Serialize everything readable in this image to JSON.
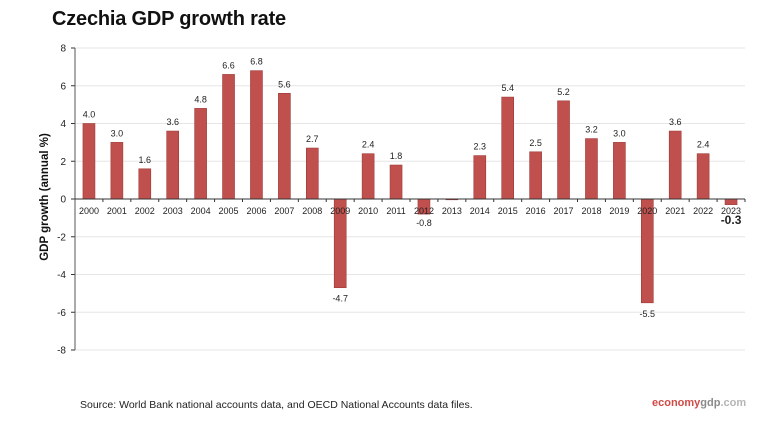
{
  "header": {
    "title": "Czechia GDP growth rate"
  },
  "footer": {
    "source": "Source: World Bank national accounts data, and OECD National Accounts data files.",
    "brand_part1": "economy",
    "brand_part2": "gdp",
    "brand_part3": ".com"
  },
  "colors": {
    "bar": "#c0504d",
    "bar_edge": "#9e3a37",
    "grid": "#e6e6e6"
  },
  "chart_data": {
    "type": "bar",
    "title": "Czechia GDP growth rate",
    "xlabel": "",
    "ylabel": "GDP growth (annual %)",
    "ylim": [
      -8,
      8
    ],
    "yticks": [
      8,
      6,
      4,
      2,
      0,
      -2,
      -4,
      -6,
      -8
    ],
    "grid": true,
    "categories": [
      "2000",
      "2001",
      "2002",
      "2003",
      "2004",
      "2005",
      "2006",
      "2007",
      "2008",
      "2009",
      "2010",
      "2011",
      "2012",
      "2013",
      "2014",
      "2015",
      "2016",
      "2017",
      "2018",
      "2019",
      "2020",
      "2021",
      "2022",
      "2023"
    ],
    "values": [
      4.0,
      3.0,
      1.6,
      3.6,
      4.8,
      6.6,
      6.8,
      5.6,
      2.7,
      -4.7,
      2.4,
      1.8,
      -0.8,
      0.0,
      2.3,
      5.4,
      2.5,
      5.2,
      3.2,
      3.0,
      -5.5,
      3.6,
      2.4,
      -0.3
    ],
    "labels": [
      "4.0",
      "3.0",
      "1.6",
      "3.6",
      "4.8",
      "6.6",
      "6.8",
      "5.6",
      "2.7",
      "-4.7",
      "2.4",
      "1.8",
      "-0.8",
      "",
      "2.3",
      "5.4",
      "2.5",
      "5.2",
      "3.2",
      "3.0",
      "-5.5",
      "3.6",
      "2.4",
      "-0.3"
    ]
  }
}
